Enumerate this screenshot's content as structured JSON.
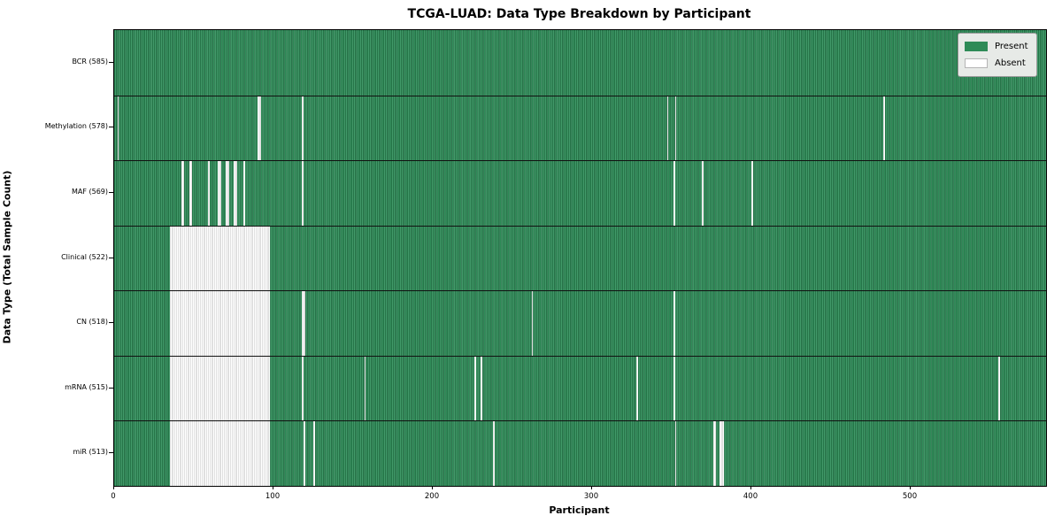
{
  "title": "TCGA-LUAD: Data Type Breakdown by Participant",
  "colors": {
    "present": "#2e8b57",
    "present_edge_dark": "#1e5c3a",
    "present_edge_light": "#55a87c",
    "absent": "#ffffff",
    "absent_edge": "#c2c2c2",
    "legend_bg": "#e7eae7",
    "plot_border": "#000000"
  },
  "chart_data": {
    "type": "heatmap",
    "title": "TCGA-LUAD: Data Type Breakdown by Participant",
    "xlabel": "Participant",
    "ylabel": "Data Type (Total Sample Count)",
    "x_range": [
      0,
      585
    ],
    "x_ticks": [
      0,
      100,
      200,
      300,
      400,
      500
    ],
    "grid": false,
    "legend_position": "upper right",
    "legend": [
      {
        "label": "Present",
        "color": "#2e8b57"
      },
      {
        "label": "Absent",
        "color": "#ffffff"
      }
    ],
    "rows": [
      {
        "name": "BCR",
        "label": "BCR (585)",
        "present_count": 585,
        "absent_ranges": []
      },
      {
        "name": "Methylation",
        "label": "Methylation (578)",
        "present_count": 578,
        "absent_ranges": [
          [
            2,
            2
          ],
          [
            90,
            91
          ],
          [
            118,
            118
          ],
          [
            347,
            347
          ],
          [
            352,
            352
          ],
          [
            483,
            483
          ]
        ]
      },
      {
        "name": "MAF",
        "label": "MAF (569)",
        "present_count": 569,
        "absent_ranges": [
          [
            42,
            43
          ],
          [
            47,
            48
          ],
          [
            59,
            59
          ],
          [
            65,
            66
          ],
          [
            70,
            71
          ],
          [
            75,
            76
          ],
          [
            81,
            81
          ],
          [
            118,
            118
          ],
          [
            351,
            351
          ],
          [
            369,
            369
          ],
          [
            400,
            400
          ]
        ]
      },
      {
        "name": "Clinical",
        "label": "Clinical (522)",
        "present_count": 522,
        "absent_ranges": [
          [
            35,
            97
          ]
        ]
      },
      {
        "name": "CN",
        "label": "CN (518)",
        "present_count": 518,
        "absent_ranges": [
          [
            35,
            97
          ],
          [
            118,
            119
          ],
          [
            262,
            262
          ],
          [
            351,
            351
          ]
        ]
      },
      {
        "name": "mRNA",
        "label": "mRNA (515)",
        "present_count": 515,
        "absent_ranges": [
          [
            35,
            97
          ],
          [
            118,
            118
          ],
          [
            157,
            157
          ],
          [
            226,
            226
          ],
          [
            230,
            230
          ],
          [
            328,
            328
          ],
          [
            351,
            351
          ],
          [
            555,
            555
          ]
        ]
      },
      {
        "name": "miR",
        "label": "miR (513)",
        "present_count": 513,
        "absent_ranges": [
          [
            35,
            97
          ],
          [
            119,
            119
          ],
          [
            125,
            125
          ],
          [
            238,
            238
          ],
          [
            352,
            352
          ],
          [
            376,
            377
          ],
          [
            380,
            382
          ]
        ]
      }
    ]
  }
}
